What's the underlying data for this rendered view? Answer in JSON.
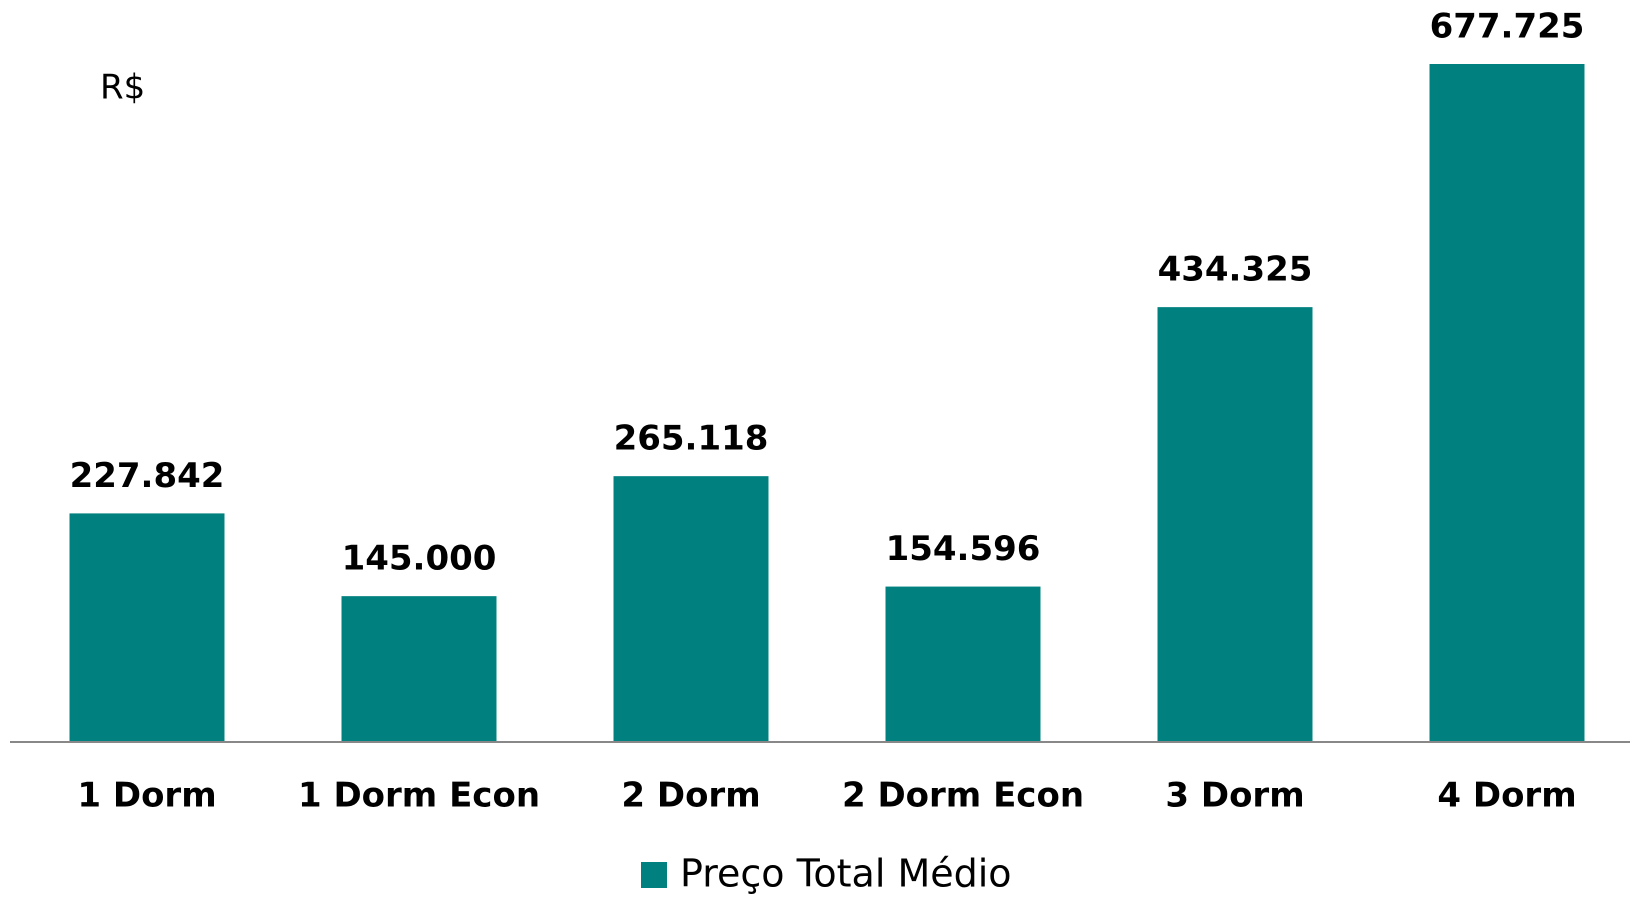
{
  "chart_data": {
    "type": "bar",
    "unit_label": "R$",
    "categories": [
      "1 Dorm",
      "1 Dorm Econ",
      "2 Dorm",
      "2 Dorm Econ",
      "3 Dorm",
      "4 Dorm"
    ],
    "series": [
      {
        "name": "Preço Total Médio",
        "color": "#00807f",
        "values": [
          227842,
          145000,
          265118,
          154596,
          434325,
          677725
        ],
        "value_labels": [
          "227.842",
          "145.000",
          "265.118",
          "154.596",
          "434.325",
          "677.725"
        ]
      }
    ],
    "legend": "bottom"
  }
}
